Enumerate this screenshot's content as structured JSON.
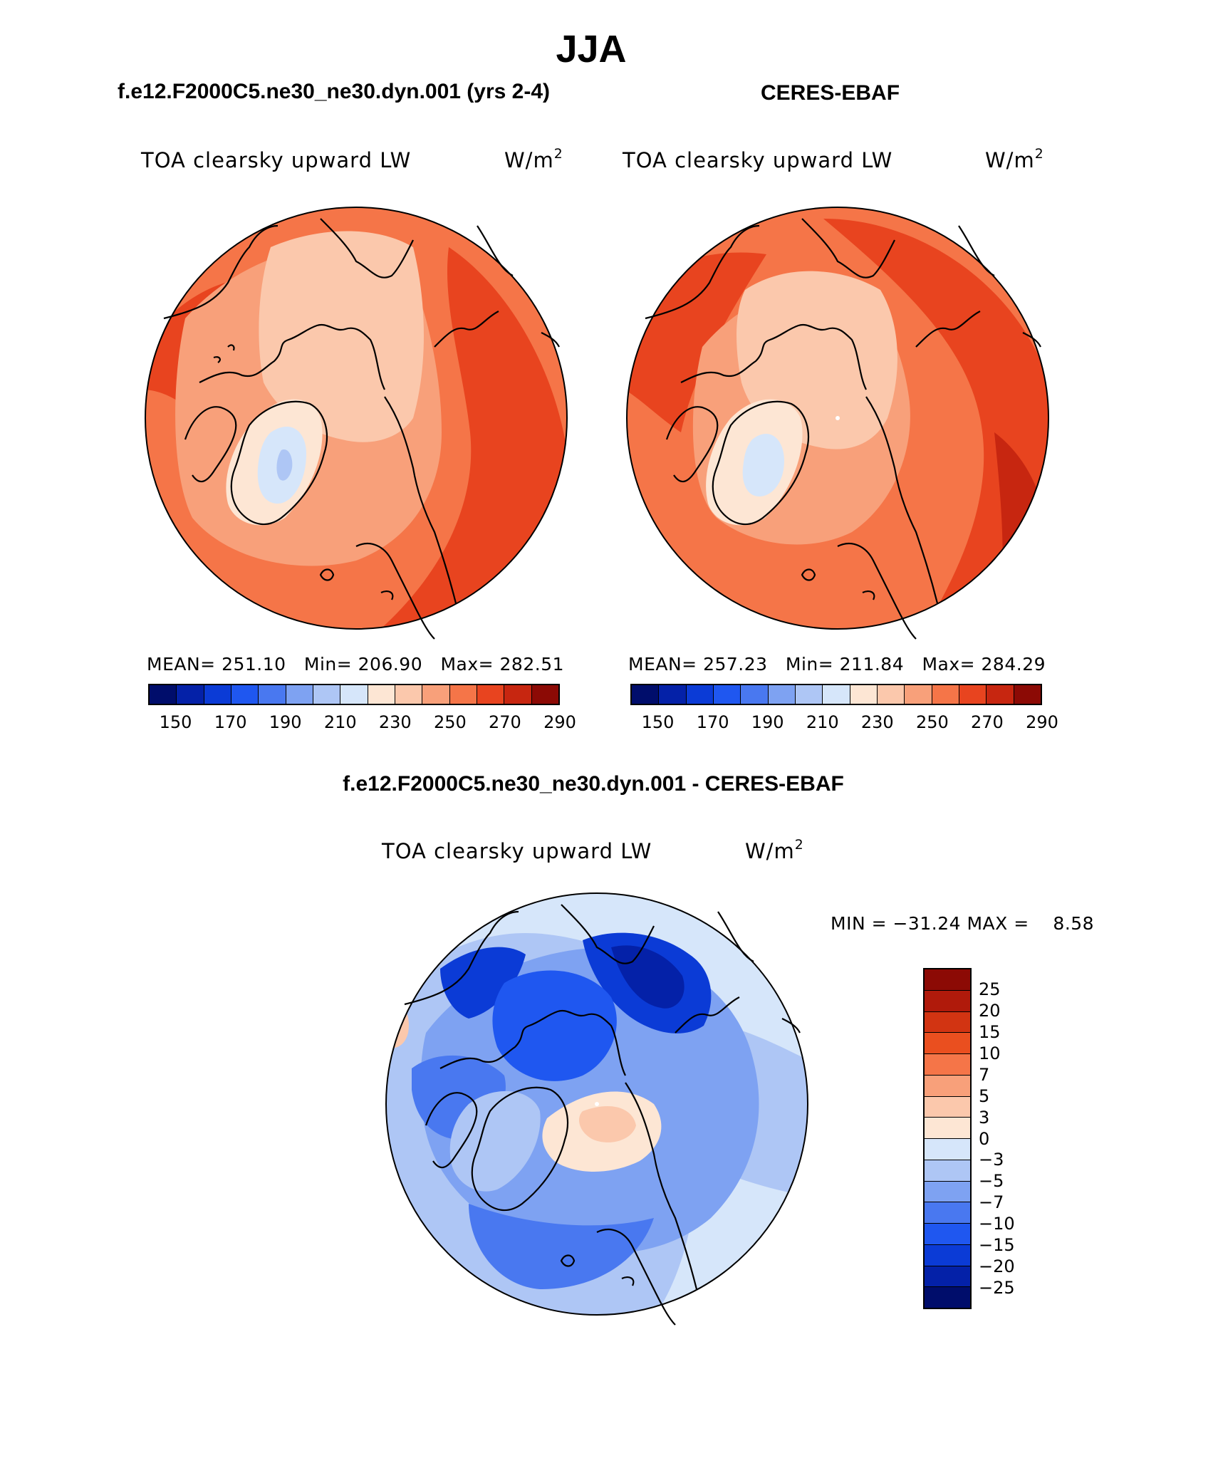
{
  "season": "JJA",
  "panels": [
    {
      "header": "f.e12.F2000C5.ne30_ne30.dyn.001 (yrs 2-4)",
      "variable": "TOA clearsky upward LW",
      "units_base": "W/m",
      "units_exp": "2",
      "stats": "MEAN= 251.10   Min= 206.90   Max= 282.51"
    },
    {
      "header": "CERES-EBAF",
      "variable": "TOA clearsky upward LW",
      "units_base": "W/m",
      "units_exp": "2",
      "stats": "MEAN= 257.23   Min= 211.84   Max= 284.29"
    }
  ],
  "colorbar_ticks": [
    "150",
    "170",
    "190",
    "210",
    "230",
    "250",
    "270",
    "290"
  ],
  "colorbar_colors": [
    "#000d6b",
    "#0421a8",
    "#0b3bd6",
    "#1f57f0",
    "#4978f0",
    "#7ea2f2",
    "#aec6f5",
    "#d6e6fa",
    "#fde6d4",
    "#fbc8ac",
    "#f8a07a",
    "#f57548",
    "#e8441f",
    "#c72610",
    "#8c0a05"
  ],
  "difference": {
    "header": "f.e12.F2000C5.ne30_ne30.dyn.001 - CERES-EBAF",
    "variable": "TOA clearsky upward LW",
    "units_base": "W/m",
    "units_exp": "2",
    "minmax": "MIN = −31.24 MAX =    8.58",
    "levels": [
      "25",
      "20",
      "15",
      "10",
      "7",
      "5",
      "3",
      "0",
      "−3",
      "−5",
      "−7",
      "−10",
      "−15",
      "−20",
      "−25"
    ],
    "colors": [
      "#8c0a05",
      "#b01a0b",
      "#d23412",
      "#ea4f1f",
      "#f57548",
      "#f8a07a",
      "#fbc8ac",
      "#fde6d4",
      "#d6e6fa",
      "#aec6f5",
      "#7ea2f2",
      "#4978f0",
      "#1f57f0",
      "#0b3bd6",
      "#0421a8",
      "#000d6b"
    ]
  }
}
